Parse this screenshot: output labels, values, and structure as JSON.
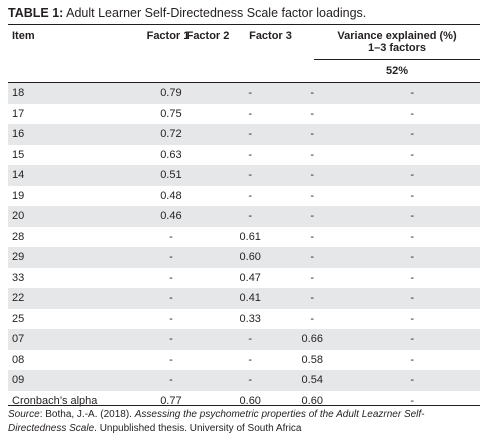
{
  "caption": {
    "label": "TABLE 1:",
    "title": "Adult Learner Self-Directedness Scale factor loadings."
  },
  "header": {
    "item": "Item",
    "factor1": "Factor 1",
    "factor2": "Factor 2",
    "factor3": "Factor 3",
    "variance_line1": "Variance explained (%)",
    "variance_line2": "1–3 factors",
    "variance_value": "52%"
  },
  "rows": [
    {
      "item": "18",
      "f1": "0.79",
      "f2": "-",
      "f3": "-",
      "var": "-"
    },
    {
      "item": "17",
      "f1": "0.75",
      "f2": "-",
      "f3": "-",
      "var": "-"
    },
    {
      "item": "16",
      "f1": "0.72",
      "f2": "-",
      "f3": "-",
      "var": "-"
    },
    {
      "item": "15",
      "f1": "0.63",
      "f2": "-",
      "f3": "-",
      "var": "-"
    },
    {
      "item": "14",
      "f1": "0.51",
      "f2": "-",
      "f3": "-",
      "var": "-"
    },
    {
      "item": "19",
      "f1": "0.48",
      "f2": "-",
      "f3": "-",
      "var": "-"
    },
    {
      "item": "20",
      "f1": "0.46",
      "f2": "-",
      "f3": "-",
      "var": "-"
    },
    {
      "item": "28",
      "f1": "-",
      "f2": "0.61",
      "f3": "-",
      "var": "-"
    },
    {
      "item": "29",
      "f1": "-",
      "f2": "0.60",
      "f3": "-",
      "var": "-"
    },
    {
      "item": "33",
      "f1": "-",
      "f2": "0.47",
      "f3": "-",
      "var": "-"
    },
    {
      "item": "22",
      "f1": "-",
      "f2": "0.41",
      "f3": "-",
      "var": "-"
    },
    {
      "item": "25",
      "f1": "-",
      "f2": "0.33",
      "f3": "-",
      "var": "-"
    },
    {
      "item": "07",
      "f1": "-",
      "f2": "-",
      "f3": "0.66",
      "var": "-"
    },
    {
      "item": "08",
      "f1": "-",
      "f2": "-",
      "f3": "0.58",
      "var": "-"
    },
    {
      "item": "09",
      "f1": "-",
      "f2": "-",
      "f3": "0.54",
      "var": "-"
    },
    {
      "item": "Cronbach’s alpha",
      "f1": "0.77",
      "f2": "0.60",
      "f3": "0.60",
      "var": "-"
    }
  ],
  "source": {
    "label": "Source",
    "prefix": ": Botha, J.-A. (2018). ",
    "title": "Assessing the psychometric properties of the Adult Leazrner Self-Directedness Scale",
    "suffix": ". Unpublished thesis. University of South Africa"
  }
}
